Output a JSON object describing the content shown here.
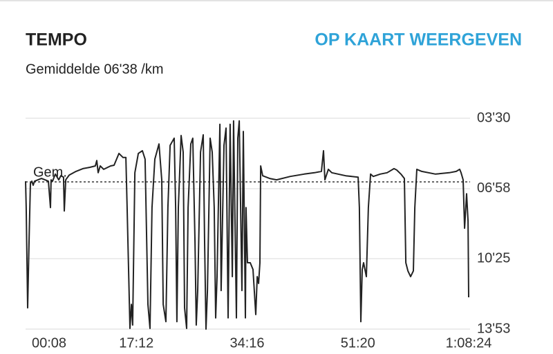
{
  "chart_data": {
    "type": "line",
    "title": "TEMPO",
    "link": "OP KAART WEERGEVEN",
    "subtitle": "Gemiddelde 06'38 /km",
    "reference_line": {
      "value": 398,
      "label": "Gem."
    },
    "xlim": [
      8,
      4104
    ],
    "xticks": [
      {
        "value": 8,
        "label": "00:08"
      },
      {
        "value": 1032,
        "label": "17:12"
      },
      {
        "value": 2056,
        "label": "34:16"
      },
      {
        "value": 3080,
        "label": "51:20"
      },
      {
        "value": 4104,
        "label": "1:08:24"
      }
    ],
    "ylim": [
      833,
      210
    ],
    "yticks": [
      {
        "value": 210,
        "label": "03'30"
      },
      {
        "value": 418,
        "label": "06'58"
      },
      {
        "value": 625,
        "label": "10'25"
      },
      {
        "value": 833,
        "label": "13'53"
      }
    ],
    "grid": true,
    "x": [
      8,
      14,
      27,
      40,
      53,
      66,
      78,
      91,
      155,
      219,
      238,
      244,
      257,
      283,
      315,
      334,
      359,
      366,
      379,
      411,
      474,
      538,
      602,
      653,
      666,
      679,
      698,
      730,
      794,
      826,
      871,
      909,
      935,
      947,
      973,
      986,
      998,
      1018,
      1050,
      1088,
      1113,
      1139,
      1158,
      1177,
      1203,
      1241,
      1267,
      1280,
      1305,
      1324,
      1344,
      1382,
      1395,
      1407,
      1420,
      1446,
      1465,
      1478,
      1497,
      1510,
      1535,
      1554,
      1574,
      1586,
      1599,
      1625,
      1650,
      1663,
      1676,
      1689,
      1714,
      1733,
      1752,
      1765,
      1778,
      1804,
      1816,
      1842,
      1861,
      1880,
      1899,
      1919,
      1931,
      1957,
      1970,
      1983,
      2008,
      2021,
      2040,
      2046,
      2059,
      2085,
      2110,
      2136,
      2149,
      2162,
      2174,
      2181,
      2200,
      2264,
      2328,
      2455,
      2583,
      2679,
      2743,
      2762,
      2775,
      2807,
      2839,
      2967,
      3082,
      3094,
      3107,
      3120,
      3133,
      3158,
      3177,
      3197,
      3222,
      3286,
      3350,
      3414,
      3439,
      3478,
      3510,
      3523,
      3542,
      3567,
      3593,
      3606,
      3625,
      3670,
      3797,
      3925,
      3989,
      4021,
      4034,
      4053,
      4066,
      4085,
      4098,
      4104
    ],
    "series": [
      {
        "color": "#222222",
        "values": [
          396,
          474,
          770,
          576,
          402,
          396,
          408,
          396,
          388,
          396,
          474,
          392,
          396,
          375,
          392,
          380,
          384,
          484,
          392,
          378,
          367,
          359,
          355,
          351,
          335,
          371,
          351,
          361,
          351,
          349,
          314,
          326,
          326,
          474,
          831,
          760,
          821,
          371,
          314,
          306,
          331,
          760,
          831,
          474,
          331,
          286,
          392,
          760,
          811,
          474,
          290,
          269,
          474,
          811,
          474,
          261,
          310,
          770,
          831,
          474,
          286,
          269,
          576,
          821,
          719,
          310,
          259,
          576,
          833,
          719,
          269,
          310,
          474,
          800,
          678,
          228,
          719,
          290,
          239,
          800,
          228,
          678,
          218,
          800,
          269,
          218,
          719,
          249,
          800,
          474,
          637,
          637,
          657,
          790,
          678,
          698,
          637,
          351,
          380,
          388,
          392,
          382,
          375,
          371,
          367,
          306,
          392,
          361,
          371,
          380,
          384,
          474,
          811,
          657,
          637,
          678,
          474,
          375,
          382,
          375,
          371,
          359,
          363,
          375,
          388,
          637,
          661,
          678,
          661,
          474,
          361,
          367,
          375,
          371,
          367,
          361,
          371,
          392,
          535,
          433,
          514,
          739
        ]
      }
    ]
  }
}
